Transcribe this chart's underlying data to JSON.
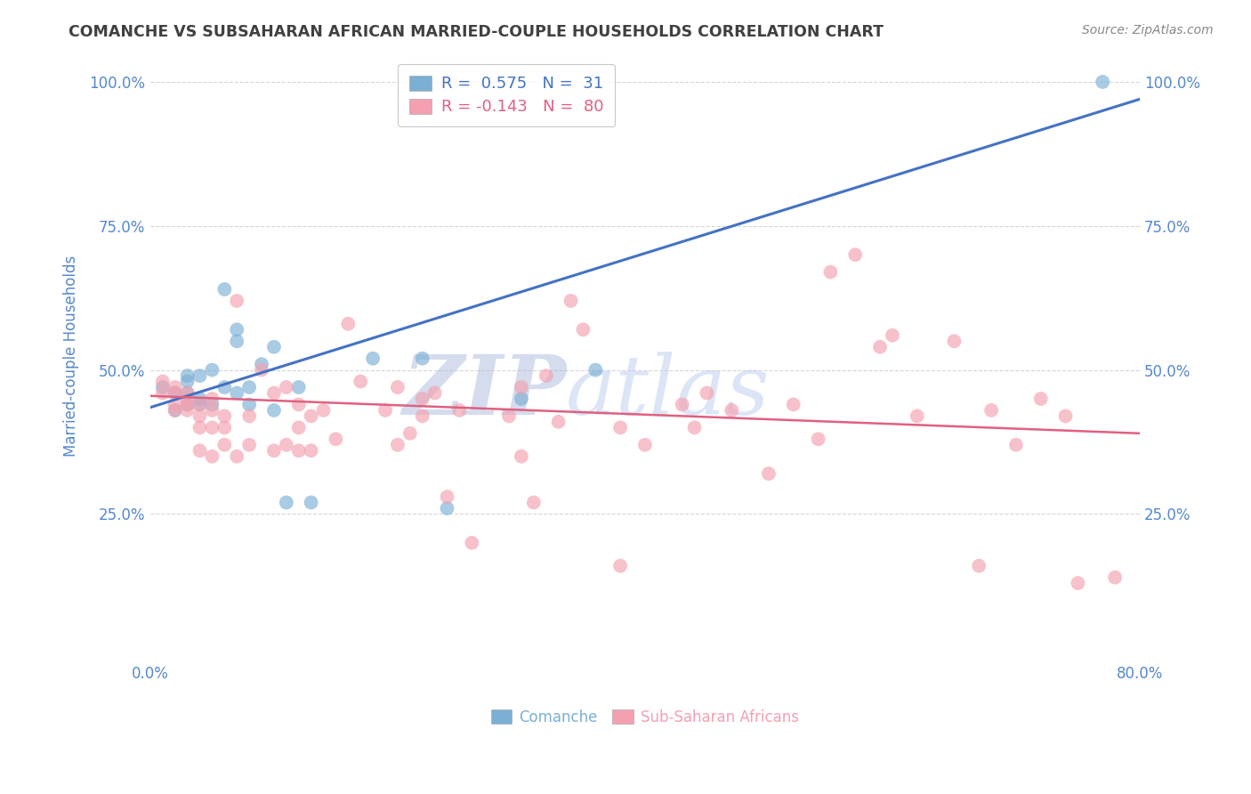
{
  "title": "COMANCHE VS SUBSAHARAN AFRICAN MARRIED-COUPLE HOUSEHOLDS CORRELATION CHART",
  "source": "Source: ZipAtlas.com",
  "ylabel": "Married-couple Households",
  "xlim": [
    0.0,
    0.8
  ],
  "ylim": [
    0.0,
    1.05
  ],
  "ytick_vals": [
    0.25,
    0.5,
    0.75,
    1.0
  ],
  "ytick_labels": [
    "25.0%",
    "50.0%",
    "75.0%",
    "100.0%"
  ],
  "xtick_vals": [
    0.0,
    0.8
  ],
  "xtick_labels": [
    "0.0%",
    "80.0%"
  ],
  "legend1_R": "0.575",
  "legend1_N": "31",
  "legend2_R": "-0.143",
  "legend2_N": "80",
  "blue_color": "#7BAFD4",
  "pink_color": "#F4A0B0",
  "blue_line_color": "#4472C4",
  "pink_line_color": "#E06080",
  "watermark_zip": "ZIP",
  "watermark_atlas": "atlas",
  "blue_scatter_x": [
    0.01,
    0.02,
    0.02,
    0.03,
    0.03,
    0.03,
    0.03,
    0.04,
    0.04,
    0.04,
    0.05,
    0.05,
    0.06,
    0.06,
    0.07,
    0.07,
    0.07,
    0.08,
    0.08,
    0.09,
    0.1,
    0.1,
    0.11,
    0.12,
    0.13,
    0.18,
    0.22,
    0.24,
    0.3,
    0.36,
    0.77
  ],
  "blue_scatter_y": [
    0.47,
    0.43,
    0.46,
    0.44,
    0.46,
    0.48,
    0.49,
    0.44,
    0.45,
    0.49,
    0.44,
    0.5,
    0.47,
    0.64,
    0.46,
    0.55,
    0.57,
    0.44,
    0.47,
    0.51,
    0.43,
    0.54,
    0.27,
    0.47,
    0.27,
    0.52,
    0.52,
    0.26,
    0.45,
    0.5,
    1.0
  ],
  "pink_scatter_x": [
    0.01,
    0.01,
    0.02,
    0.02,
    0.02,
    0.02,
    0.03,
    0.03,
    0.03,
    0.03,
    0.04,
    0.04,
    0.04,
    0.04,
    0.05,
    0.05,
    0.05,
    0.05,
    0.06,
    0.06,
    0.06,
    0.07,
    0.07,
    0.08,
    0.08,
    0.09,
    0.1,
    0.1,
    0.11,
    0.11,
    0.12,
    0.12,
    0.12,
    0.13,
    0.13,
    0.14,
    0.15,
    0.16,
    0.17,
    0.19,
    0.2,
    0.2,
    0.21,
    0.22,
    0.22,
    0.23,
    0.24,
    0.25,
    0.26,
    0.29,
    0.3,
    0.3,
    0.31,
    0.32,
    0.33,
    0.34,
    0.35,
    0.38,
    0.38,
    0.4,
    0.43,
    0.44,
    0.45,
    0.47,
    0.5,
    0.52,
    0.54,
    0.55,
    0.57,
    0.59,
    0.6,
    0.62,
    0.65,
    0.67,
    0.68,
    0.7,
    0.72,
    0.74,
    0.75,
    0.78
  ],
  "pink_scatter_y": [
    0.46,
    0.48,
    0.43,
    0.44,
    0.46,
    0.47,
    0.43,
    0.44,
    0.45,
    0.46,
    0.36,
    0.4,
    0.42,
    0.44,
    0.35,
    0.4,
    0.43,
    0.45,
    0.37,
    0.4,
    0.42,
    0.35,
    0.62,
    0.37,
    0.42,
    0.5,
    0.36,
    0.46,
    0.37,
    0.47,
    0.36,
    0.4,
    0.44,
    0.36,
    0.42,
    0.43,
    0.38,
    0.58,
    0.48,
    0.43,
    0.37,
    0.47,
    0.39,
    0.42,
    0.45,
    0.46,
    0.28,
    0.43,
    0.2,
    0.42,
    0.35,
    0.47,
    0.27,
    0.49,
    0.41,
    0.62,
    0.57,
    0.16,
    0.4,
    0.37,
    0.44,
    0.4,
    0.46,
    0.43,
    0.32,
    0.44,
    0.38,
    0.67,
    0.7,
    0.54,
    0.56,
    0.42,
    0.55,
    0.16,
    0.43,
    0.37,
    0.45,
    0.42,
    0.13,
    0.14
  ],
  "blue_trendline_x": [
    0.0,
    0.8
  ],
  "blue_trendline_y": [
    0.435,
    0.97
  ],
  "pink_trendline_x": [
    0.0,
    0.8
  ],
  "pink_trendline_y": [
    0.455,
    0.39
  ],
  "background_color": "#FFFFFF",
  "grid_color": "#CCCCCC",
  "title_color": "#404040",
  "axis_label_color": "#5588CC",
  "tick_label_color": "#5588CC",
  "watermark_color_zip": "#AABBDD",
  "watermark_color_atlas": "#BBCCEE"
}
